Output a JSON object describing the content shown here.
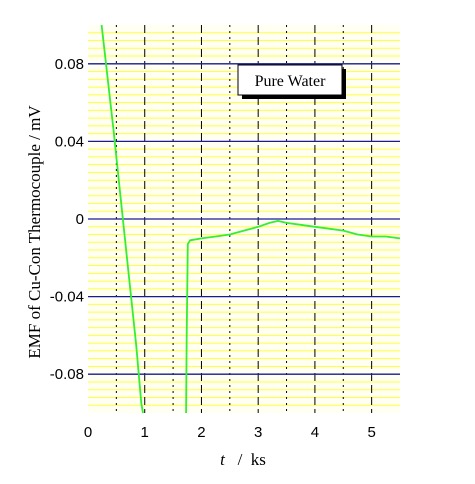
{
  "chart_data": {
    "type": "line",
    "title": "",
    "xlabel_italic": "t",
    "xlabel_rest": "  /  ks",
    "ylabel": "EMF of Cu-Con Thermocouple / mV",
    "xlim": [
      0,
      5.5
    ],
    "ylim": [
      -0.1,
      0.1
    ],
    "x_ticks": [
      0,
      1,
      2,
      3,
      4,
      5
    ],
    "x_tick_labels": [
      "0",
      "1",
      "2",
      "3",
      "4",
      "5"
    ],
    "y_ticks": [
      -0.08,
      -0.04,
      0,
      0.04,
      0.08
    ],
    "y_tick_labels": [
      "-0.08",
      "-0.04",
      "0",
      "0.04",
      "0.08"
    ],
    "grid": "on",
    "legend_position": "top-right",
    "colors": {
      "series": "#33ee33",
      "major_y_grid": "#1a1aa0",
      "minor_y_grid": "#ffff44",
      "x_grid": "#000000",
      "background": "#fffff2"
    },
    "series": [
      {
        "name": "Pure Water",
        "segments": [
          [
            [
              0.24,
              0.1
            ],
            [
              0.45,
              0.046
            ],
            [
              0.65,
              -0.01
            ],
            [
              0.85,
              -0.065
            ],
            [
              0.94,
              -0.095
            ],
            [
              0.97,
              -0.1
            ]
          ],
          [
            [
              1.73,
              -0.1
            ],
            [
              1.74,
              -0.06
            ],
            [
              1.76,
              -0.013
            ],
            [
              1.8,
              -0.011
            ],
            [
              2.0,
              -0.01
            ],
            [
              2.25,
              -0.009
            ],
            [
              2.5,
              -0.008
            ],
            [
              2.75,
              -0.006
            ],
            [
              3.0,
              -0.004
            ],
            [
              3.2,
              -0.002
            ],
            [
              3.35,
              -0.001
            ],
            [
              3.5,
              -0.002
            ],
            [
              3.75,
              -0.003
            ],
            [
              4.0,
              -0.004
            ],
            [
              4.25,
              -0.005
            ],
            [
              4.5,
              -0.006
            ],
            [
              4.75,
              -0.008
            ],
            [
              5.0,
              -0.009
            ],
            [
              5.25,
              -0.009
            ],
            [
              5.5,
              -0.01
            ]
          ]
        ]
      }
    ]
  }
}
